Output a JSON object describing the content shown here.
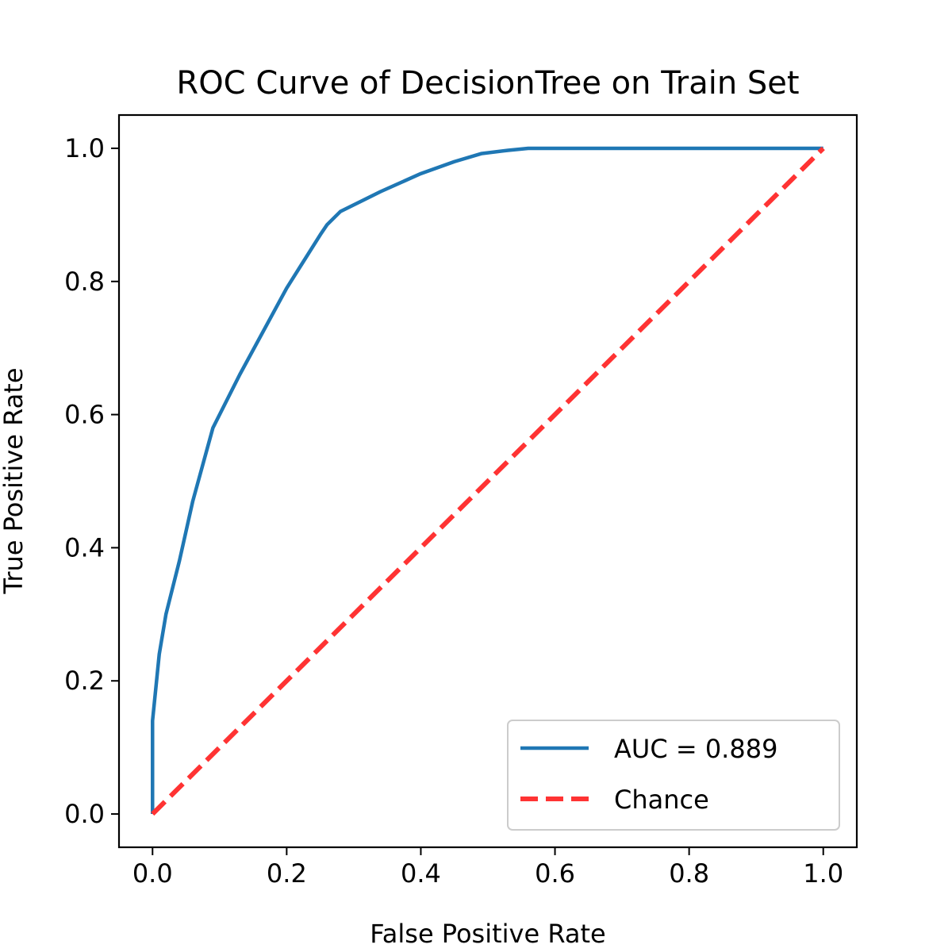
{
  "chart_data": {
    "type": "line",
    "title": "ROC Curve of DecisionTree on Train Set",
    "xlabel": "False Positive Rate",
    "ylabel": "True Positive Rate",
    "xlim": [
      -0.05,
      1.05
    ],
    "ylim": [
      -0.05,
      1.05
    ],
    "xticks": [
      0.0,
      0.2,
      0.4,
      0.6,
      0.8,
      1.0
    ],
    "yticks": [
      0.0,
      0.2,
      0.4,
      0.6,
      0.8,
      1.0
    ],
    "xtick_labels": [
      "0.0",
      "0.2",
      "0.4",
      "0.6",
      "0.8",
      "1.0"
    ],
    "ytick_labels": [
      "0.0",
      "0.2",
      "0.4",
      "0.6",
      "0.8",
      "1.0"
    ],
    "grid": false,
    "legend_position": "lower-right",
    "series": [
      {
        "name": "AUC = 0.889",
        "color": "#1f77b4",
        "style": "solid",
        "x": [
          0.0,
          0.0,
          0.01,
          0.02,
          0.04,
          0.06,
          0.09,
          0.13,
          0.2,
          0.25,
          0.26,
          0.28,
          0.3,
          0.34,
          0.4,
          0.45,
          0.49,
          0.53,
          0.56,
          0.7,
          0.85,
          1.0
        ],
        "y": [
          0.0,
          0.14,
          0.24,
          0.3,
          0.38,
          0.47,
          0.58,
          0.66,
          0.79,
          0.87,
          0.885,
          0.905,
          0.915,
          0.935,
          0.962,
          0.98,
          0.992,
          0.997,
          1.0,
          1.0,
          1.0,
          1.0
        ]
      },
      {
        "name": "Chance",
        "color": "#ff3333",
        "style": "dashed",
        "x": [
          0.0,
          1.0
        ],
        "y": [
          0.0,
          1.0
        ]
      }
    ]
  }
}
